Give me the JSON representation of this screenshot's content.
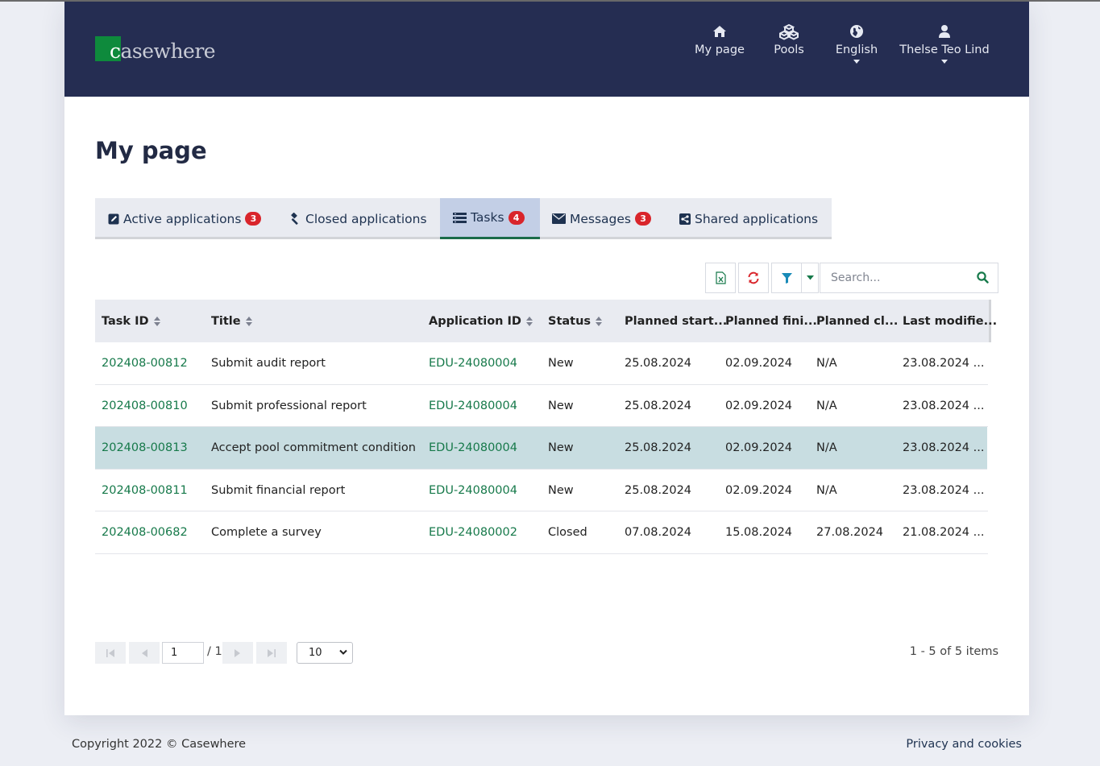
{
  "brand": {
    "logo_text": "casewhere",
    "accent": "#0e8a3c",
    "header_bg": "#252d52"
  },
  "nav": [
    {
      "label": "My page",
      "icon": "home-icon"
    },
    {
      "label": "Pools",
      "icon": "cubes-icon"
    },
    {
      "label": "English",
      "icon": "globe-icon"
    },
    {
      "label": "Thelse Teo Lind",
      "icon": "user-icon"
    }
  ],
  "page": {
    "title": "My page"
  },
  "tabs": [
    {
      "label": "Active applications",
      "badge": "3",
      "icon": "edit-icon"
    },
    {
      "label": "Closed applications",
      "badge": "",
      "icon": "gavel-icon"
    },
    {
      "label": "Tasks",
      "badge": "4",
      "icon": "tasks-icon",
      "active": true
    },
    {
      "label": "Messages",
      "badge": "3",
      "icon": "envelope-icon"
    },
    {
      "label": "Shared applications",
      "badge": "",
      "icon": "share-icon"
    }
  ],
  "toolbar": {
    "search_placeholder": "Search...",
    "export_icon": "excel-icon",
    "refresh_icon": "refresh-icon",
    "filter_icon": "filter-icon"
  },
  "table": {
    "columns": [
      "Task ID",
      "Title",
      "Application ID",
      "Status",
      "Planned start...",
      "Planned fini...",
      "Planned cl...",
      "Last modifie..."
    ],
    "rows": [
      {
        "task_id": "202408-00812",
        "title": "Submit audit report",
        "app_id": "EDU-24080004",
        "status": "New",
        "start": "25.08.2024",
        "finish": "02.09.2024",
        "closed": "N/A",
        "modified": "23.08.2024 ..."
      },
      {
        "task_id": "202408-00810",
        "title": "Submit professional report",
        "app_id": "EDU-24080004",
        "status": "New",
        "start": "25.08.2024",
        "finish": "02.09.2024",
        "closed": "N/A",
        "modified": "23.08.2024 ..."
      },
      {
        "task_id": "202408-00813",
        "title": "Accept pool commitment condition",
        "app_id": "EDU-24080004",
        "status": "New",
        "start": "25.08.2024",
        "finish": "02.09.2024",
        "closed": "N/A",
        "modified": "23.08.2024 ..."
      },
      {
        "task_id": "202408-00811",
        "title": "Submit financial report",
        "app_id": "EDU-24080004",
        "status": "New",
        "start": "25.08.2024",
        "finish": "02.09.2024",
        "closed": "N/A",
        "modified": "23.08.2024 ..."
      },
      {
        "task_id": "202408-00682",
        "title": "Complete a survey",
        "app_id": "EDU-24080002",
        "status": "Closed",
        "start": "07.08.2024",
        "finish": "15.08.2024",
        "closed": "27.08.2024",
        "modified": "21.08.2024 ..."
      }
    ]
  },
  "pager": {
    "current_page": "1",
    "total_pages": "/ 1",
    "page_size": "10",
    "items_info": "1 - 5 of 5 items"
  },
  "footer": {
    "copyright": "Copyright 2022 © Casewhere",
    "privacy": "Privacy and cookies"
  }
}
